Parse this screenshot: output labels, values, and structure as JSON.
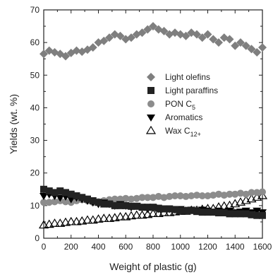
{
  "chart_data": {
    "type": "scatter",
    "title": "",
    "xlabel": "Weight of plastic (g)",
    "ylabel": "Yields (wt. %)",
    "xlim": [
      0,
      1600
    ],
    "ylim": [
      0,
      70
    ],
    "xticks": [
      "0",
      "200",
      "400",
      "600",
      "800",
      "1000",
      "1200",
      "1400",
      "1600"
    ],
    "yticks": [
      "0",
      "10",
      "20",
      "30",
      "40",
      "50",
      "60",
      "70"
    ],
    "grid": false,
    "legend_position": "right, upper-middle",
    "series": [
      {
        "name": "Light olefins",
        "marker": "diamond-filled",
        "color": "#7f7f7f",
        "x": [
          0,
          40,
          80,
          120,
          160,
          200,
          240,
          280,
          320,
          360,
          400,
          440,
          480,
          520,
          560,
          600,
          640,
          680,
          720,
          760,
          800,
          840,
          880,
          920,
          960,
          1000,
          1040,
          1080,
          1120,
          1160,
          1200,
          1240,
          1280,
          1320,
          1360,
          1400,
          1440,
          1480,
          1520,
          1560,
          1600
        ],
        "y": [
          56.5,
          57.5,
          57.0,
          56.5,
          55.8,
          56.8,
          57.5,
          57.2,
          57.8,
          58.5,
          60.0,
          60.5,
          61.5,
          62.5,
          62.0,
          61.0,
          61.5,
          62.5,
          63.0,
          64.0,
          65.0,
          64.0,
          63.5,
          62.5,
          63.0,
          62.5,
          62.0,
          63.0,
          62.5,
          61.5,
          62.5,
          61.0,
          60.0,
          61.5,
          61.0,
          59.0,
          60.0,
          59.0,
          58.0,
          57.0,
          58.5
        ]
      },
      {
        "name": "Light paraffins",
        "marker": "square-filled",
        "color": "#222222",
        "x": [
          0,
          40,
          80,
          120,
          160,
          200,
          240,
          280,
          320,
          360,
          400,
          440,
          480,
          520,
          560,
          600,
          640,
          680,
          720,
          760,
          800,
          840,
          880,
          920,
          960,
          1000,
          1040,
          1080,
          1120,
          1160,
          1200,
          1240,
          1280,
          1320,
          1360,
          1400,
          1440,
          1480,
          1520,
          1560,
          1600
        ],
        "y": [
          15.0,
          14.5,
          14.0,
          14.5,
          14.0,
          13.5,
          13.0,
          12.5,
          12.0,
          11.5,
          11.0,
          10.5,
          10.5,
          10.0,
          10.0,
          10.0,
          9.8,
          9.8,
          9.5,
          9.5,
          9.5,
          9.2,
          9.0,
          9.0,
          8.8,
          8.5,
          8.5,
          8.5,
          8.2,
          8.0,
          8.0,
          8.0,
          7.8,
          7.8,
          7.5,
          7.5,
          7.5,
          7.5,
          7.2,
          7.0,
          7.0
        ]
      },
      {
        "name": "PON C5",
        "marker": "circle-filled",
        "color": "#8c8c8c",
        "x": [
          0,
          40,
          80,
          120,
          160,
          200,
          240,
          280,
          320,
          360,
          400,
          440,
          480,
          520,
          560,
          600,
          640,
          680,
          720,
          760,
          800,
          840,
          880,
          920,
          960,
          1000,
          1040,
          1080,
          1120,
          1160,
          1200,
          1240,
          1280,
          1320,
          1360,
          1400,
          1440,
          1480,
          1520,
          1560,
          1600
        ],
        "y": [
          11.0,
          11.0,
          11.2,
          11.5,
          11.2,
          11.0,
          11.5,
          11.8,
          11.5,
          11.0,
          11.2,
          11.5,
          11.8,
          12.0,
          12.0,
          12.2,
          12.0,
          12.2,
          12.5,
          12.5,
          12.5,
          12.8,
          12.5,
          12.8,
          13.0,
          13.0,
          12.8,
          13.0,
          13.2,
          13.0,
          13.0,
          13.2,
          13.5,
          13.2,
          13.5,
          13.5,
          13.8,
          13.5,
          14.0,
          14.0,
          14.2
        ]
      },
      {
        "name": "Aromatics",
        "marker": "triangle-down-filled",
        "color": "#000000",
        "x": [
          0,
          40,
          80,
          120,
          160,
          200,
          240,
          280,
          320,
          360,
          400,
          440,
          480,
          520,
          560,
          600,
          640,
          680,
          720,
          760,
          800,
          840,
          880,
          920,
          960,
          1000,
          1040,
          1080,
          1120,
          1160,
          1200,
          1240,
          1280,
          1320,
          1360,
          1400,
          1440,
          1480,
          1520,
          1560,
          1600
        ],
        "y": [
          13.0,
          13.5,
          13.0,
          12.5,
          12.8,
          12.0,
          12.5,
          12.0,
          11.5,
          11.0,
          10.5,
          11.0,
          10.5,
          10.0,
          10.5,
          10.0,
          9.5,
          10.0,
          9.5,
          9.0,
          9.5,
          9.0,
          9.2,
          9.0,
          8.8,
          9.0,
          8.5,
          8.8,
          8.5,
          8.8,
          8.5,
          8.2,
          8.5,
          8.0,
          8.5,
          8.0,
          8.2,
          8.5,
          8.0,
          8.5,
          8.0
        ]
      },
      {
        "name": "Wax C12+",
        "marker": "triangle-up-open",
        "color": "#000000",
        "x": [
          0,
          40,
          80,
          120,
          160,
          200,
          240,
          280,
          320,
          360,
          400,
          440,
          480,
          520,
          560,
          600,
          640,
          680,
          720,
          760,
          800,
          840,
          880,
          920,
          960,
          1000,
          1040,
          1080,
          1120,
          1160,
          1200,
          1240,
          1280,
          1320,
          1360,
          1400,
          1440,
          1480,
          1520,
          1560,
          1600
        ],
        "y": [
          4.0,
          4.2,
          4.5,
          4.5,
          4.8,
          5.0,
          5.0,
          5.2,
          5.5,
          5.5,
          5.8,
          6.0,
          6.0,
          6.2,
          6.5,
          6.5,
          6.8,
          7.0,
          7.0,
          7.2,
          7.5,
          7.5,
          7.8,
          7.8,
          8.0,
          8.2,
          8.2,
          8.5,
          8.5,
          8.8,
          9.0,
          9.0,
          9.5,
          9.8,
          10.0,
          10.5,
          11.0,
          11.5,
          12.0,
          12.5,
          13.0
        ]
      }
    ],
    "legend": [
      {
        "label": "Light olefins"
      },
      {
        "label": "Light paraffins"
      },
      {
        "label": "PON C",
        "sub": "5"
      },
      {
        "label": "Aromatics"
      },
      {
        "label": "Wax C",
        "sub": "12+"
      }
    ]
  }
}
